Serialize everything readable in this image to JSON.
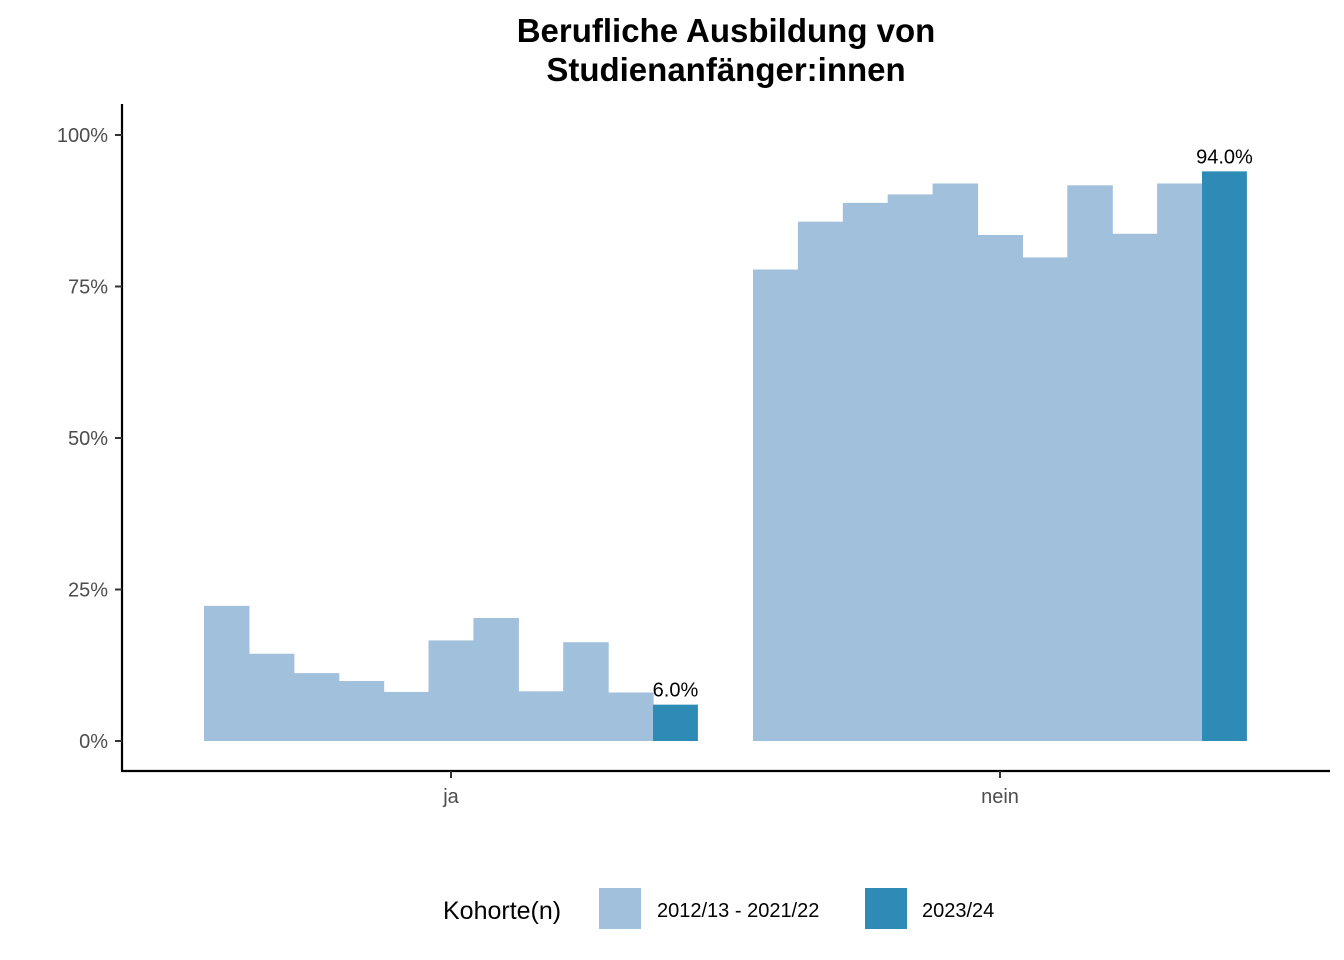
{
  "chart_data": {
    "type": "bar",
    "title_lines": [
      "Berufliche Ausbildung von",
      "Studienanfänger:innen"
    ],
    "xlabel": "",
    "ylabel": "",
    "ylim": [
      0,
      1.05
    ],
    "y_ticks": [
      0,
      0.25,
      0.5,
      0.75,
      1.0
    ],
    "y_tick_labels": [
      "0%",
      "25%",
      "50%",
      "75%",
      "100%"
    ],
    "categories": [
      "ja",
      "nein"
    ],
    "history": {
      "name": "2012/13 - 2021/22",
      "color": "#a1c0dc",
      "values": {
        "ja": [
          0.223,
          0.144,
          0.112,
          0.099,
          0.081,
          0.166,
          0.203,
          0.082,
          0.163,
          0.08
        ],
        "nein": [
          0.778,
          0.857,
          0.888,
          0.902,
          0.92,
          0.835,
          0.798,
          0.917,
          0.837,
          0.92
        ]
      }
    },
    "current": {
      "name": "2023/24",
      "color": "#2e8bb6",
      "values": {
        "ja": 0.06,
        "nein": 0.94
      },
      "labels": {
        "ja": "6.0%",
        "nein": "94.0%"
      }
    },
    "grid": false,
    "legend": {
      "title": "Kohorte(n)",
      "position": "bottom",
      "entries": [
        {
          "label": "2012/13 - 2021/22",
          "color": "#a1c0dc"
        },
        {
          "label": "2023/24",
          "color": "#2e8bb6"
        }
      ]
    }
  }
}
